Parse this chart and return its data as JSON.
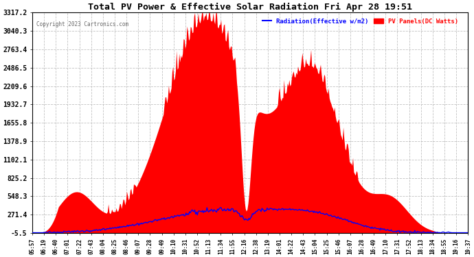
{
  "title": "Total PV Power & Effective Solar Radiation Fri Apr 28 19:51",
  "copyright": "Copyright 2023 Cartronics.com",
  "legend_radiation": "Radiation(Effective w/m2)",
  "legend_pv": "PV Panels(DC Watts)",
  "yticks": [
    -5.5,
    271.4,
    548.3,
    825.2,
    1102.1,
    1378.9,
    1655.8,
    1932.7,
    2209.6,
    2486.5,
    2763.4,
    3040.3,
    3317.2
  ],
  "ymin": -5.5,
  "ymax": 3317.2,
  "background_color": "#ffffff",
  "plot_bg_color": "#ffffff",
  "grid_color": "#aaaaaa",
  "radiation_color": "#0000ff",
  "pv_color": "#ff0000",
  "pv_fill_color": "#ff0000",
  "title_color": "#000000",
  "copyright_color": "#777777",
  "xtick_labels": [
    "05:57",
    "06:19",
    "06:40",
    "07:01",
    "07:22",
    "07:43",
    "08:04",
    "08:25",
    "08:46",
    "09:07",
    "09:28",
    "09:49",
    "10:10",
    "10:31",
    "10:52",
    "11:13",
    "11:34",
    "11:55",
    "12:16",
    "12:38",
    "13:19",
    "14:01",
    "14:22",
    "14:43",
    "15:04",
    "15:25",
    "15:46",
    "16:07",
    "16:28",
    "16:49",
    "17:10",
    "17:31",
    "17:52",
    "18:13",
    "18:34",
    "18:55",
    "19:16",
    "19:37"
  ]
}
